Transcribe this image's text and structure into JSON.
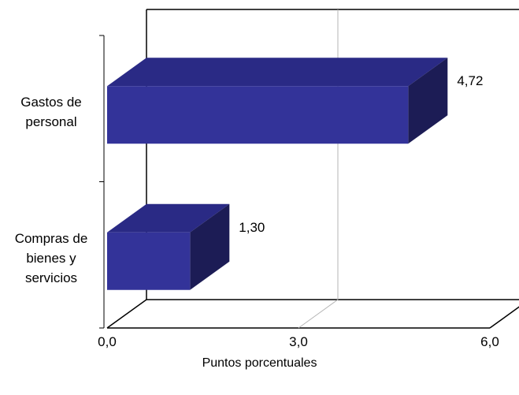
{
  "chart_data": {
    "type": "bar",
    "orientation": "horizontal",
    "style": "3d",
    "categories": [
      [
        "Gastos de",
        "personal"
      ],
      [
        "Compras de",
        "bienes y",
        "servicios"
      ]
    ],
    "values": [
      4.72,
      1.3
    ],
    "value_labels": [
      "4,72",
      "1,30"
    ],
    "xlabel": "Puntos porcentuales",
    "xlim": [
      0,
      6
    ],
    "xticks": [
      "0,0",
      "3,0",
      "6,0"
    ],
    "grid": true,
    "colors": {
      "bar_front": "#333399",
      "bar_top": "#2a2a85",
      "bar_side": "#1c1c55",
      "grid": "#b4b4b4",
      "axis": "#000000"
    }
  }
}
